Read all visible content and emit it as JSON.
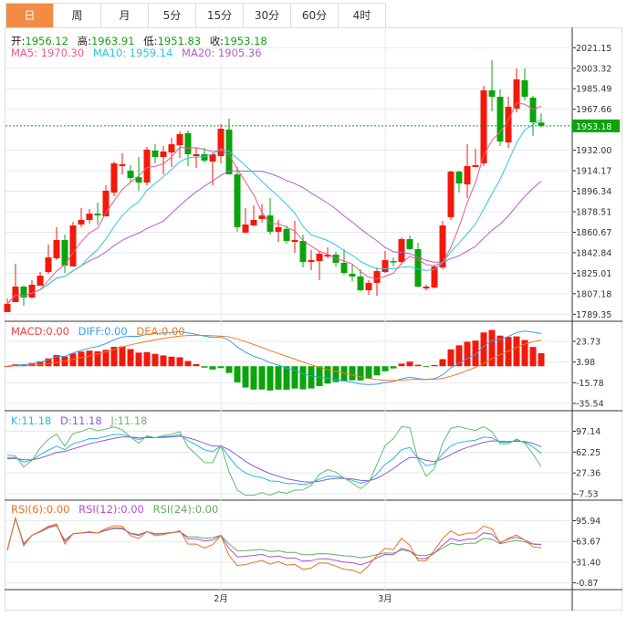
{
  "tabs": [
    {
      "label": "日",
      "active": true
    },
    {
      "label": "周",
      "active": false
    },
    {
      "label": "月",
      "active": false
    },
    {
      "label": "5分",
      "active": false
    },
    {
      "label": "15分",
      "active": false
    },
    {
      "label": "30分",
      "active": false
    },
    {
      "label": "60分",
      "active": false
    },
    {
      "label": "4时",
      "active": false
    }
  ],
  "quote": {
    "open_label": "开:",
    "open": "1956.12",
    "high_label": "高:",
    "high": "1963.91",
    "low_label": "低:",
    "low": "1951.83",
    "close_label": "收:",
    "close": "1953.18"
  },
  "ma_legend": {
    "ma5": "MA5: 1970.30",
    "ma10": "MA10: 1959.14",
    "ma20": "MA20: 1905.36"
  },
  "macd_legend": {
    "macd": "MACD:0.00",
    "diff": "DIFF:0.00",
    "dea": "DEA:0.00"
  },
  "kdj_legend": {
    "k": "K:11.18",
    "d": "D:11.18",
    "j": "J:11.18"
  },
  "rsi_legend": {
    "rsi6": "RSI(6):0.00",
    "rsi12": "RSI(12):0.00",
    "rsi24": "RSI(24):0.00"
  },
  "colors": {
    "up": "#f2190b",
    "down": "#0ba40b",
    "active_tab": "#f28b43",
    "ma5": "#ee5a8a",
    "ma10": "#31c4dc",
    "ma20": "#b65ccc",
    "diff": "#3d9cf0",
    "dea": "#f07a20",
    "k": "#28b9d8",
    "d": "#8c5ad8",
    "j": "#6ab86a",
    "rsi6": "#f07020",
    "rsi12": "#b050d0",
    "rsi24": "#60b060"
  },
  "chart_data": {
    "type": "candlestick",
    "last_price": "1953.18",
    "x_labels": [
      {
        "label": "2月",
        "index": 26
      },
      {
        "label": "3月",
        "index": 46
      }
    ],
    "price_axis": {
      "ticks": [
        "2021.15",
        "2003.32",
        "1985.49",
        "1967.66",
        "1932.00",
        "1914.17",
        "1896.34",
        "1878.51",
        "1860.67",
        "1842.84",
        "1825.01",
        "1807.18",
        "1789.35"
      ],
      "range": [
        1789.35,
        2021.15
      ]
    },
    "macd_axis": {
      "ticks": [
        "23.73",
        "3.98",
        "-15.78",
        "-35.54"
      ]
    },
    "kdj_axis": {
      "ticks": [
        "97.14",
        "62.25",
        "27.36",
        "-7.53"
      ]
    },
    "rsi_axis": {
      "ticks": [
        "95.94",
        "63.67",
        "31.40",
        "-0.87"
      ]
    },
    "ohlc": [
      [
        1791.2,
        1803.1,
        1791.2,
        1798.3
      ],
      [
        1799.9,
        1833.3,
        1799.9,
        1813.4
      ],
      [
        1813.4,
        1814.2,
        1796.7,
        1803.9
      ],
      [
        1803.9,
        1819.0,
        1803.1,
        1815.0
      ],
      [
        1814.2,
        1826.1,
        1814.2,
        1822.9
      ],
      [
        1826.1,
        1849.9,
        1824.5,
        1838.8
      ],
      [
        1838.0,
        1865.1,
        1836.4,
        1853.9
      ],
      [
        1853.9,
        1858.7,
        1825.3,
        1831.7
      ],
      [
        1830.9,
        1869.8,
        1830.9,
        1866.6
      ],
      [
        1867.4,
        1881.7,
        1865.1,
        1871.4
      ],
      [
        1871.4,
        1880.9,
        1868.2,
        1876.9
      ],
      [
        1876.9,
        1886.4,
        1867.4,
        1875.3
      ],
      [
        1874.5,
        1901.5,
        1874.5,
        1896.8
      ],
      [
        1895.2,
        1922.2,
        1892.0,
        1920.6
      ],
      [
        1918.2,
        1929.3,
        1911.0,
        1919.8
      ],
      [
        1914.2,
        1919.0,
        1903.9,
        1907.9
      ],
      [
        1908.7,
        1926.1,
        1896.8,
        1903.9
      ],
      [
        1903.9,
        1934.9,
        1901.5,
        1932.5
      ],
      [
        1931.7,
        1937.2,
        1920.6,
        1926.1
      ],
      [
        1926.1,
        1935.7,
        1911.0,
        1930.9
      ],
      [
        1930.1,
        1942.8,
        1917.4,
        1937.2
      ],
      [
        1936.4,
        1948.4,
        1925.3,
        1946.0
      ],
      [
        1946.8,
        1949.2,
        1918.2,
        1928.5
      ],
      [
        1926.9,
        1934.1,
        1916.6,
        1928.5
      ],
      [
        1928.5,
        1934.1,
        1921.4,
        1923.0
      ],
      [
        1922.2,
        1930.1,
        1901.5,
        1928.5
      ],
      [
        1926.9,
        1954.7,
        1920.6,
        1950.7
      ],
      [
        1949.9,
        1959.5,
        1911.0,
        1911.0
      ],
      [
        1911.0,
        1917.4,
        1861.1,
        1865.1
      ],
      [
        1860.3,
        1881.7,
        1860.3,
        1867.4
      ],
      [
        1866.6,
        1884.1,
        1865.8,
        1871.4
      ],
      [
        1872.2,
        1884.9,
        1869.0,
        1875.3
      ],
      [
        1875.3,
        1890.4,
        1858.7,
        1861.1
      ],
      [
        1861.1,
        1871.4,
        1852.3,
        1865.1
      ],
      [
        1863.5,
        1866.6,
        1850.7,
        1853.1
      ],
      [
        1852.3,
        1870.6,
        1842.8,
        1853.9
      ],
      [
        1853.1,
        1858.7,
        1830.1,
        1834.8
      ],
      [
        1834.8,
        1845.2,
        1827.7,
        1836.4
      ],
      [
        1835.6,
        1844.4,
        1819.0,
        1842.0
      ],
      [
        1839.6,
        1847.5,
        1838.0,
        1841.2
      ],
      [
        1841.2,
        1843.6,
        1830.9,
        1834.1
      ],
      [
        1834.1,
        1846.0,
        1823.7,
        1825.3
      ],
      [
        1824.5,
        1832.5,
        1818.2,
        1822.2
      ],
      [
        1822.2,
        1828.5,
        1809.5,
        1810.2
      ],
      [
        1810.2,
        1819.0,
        1806.3,
        1816.6
      ],
      [
        1816.6,
        1830.1,
        1805.5,
        1826.9
      ],
      [
        1826.1,
        1844.4,
        1825.3,
        1836.4
      ],
      [
        1835.6,
        1838.8,
        1830.9,
        1834.8
      ],
      [
        1834.8,
        1856.3,
        1832.5,
        1854.7
      ],
      [
        1854.7,
        1857.9,
        1845.2,
        1846.0
      ],
      [
        1846.0,
        1851.5,
        1812.6,
        1813.4
      ],
      [
        1811.8,
        1815.0,
        1810.2,
        1813.4
      ],
      [
        1812.6,
        1832.5,
        1811.8,
        1830.9
      ],
      [
        1830.1,
        1870.6,
        1828.5,
        1866.6
      ],
      [
        1873.8,
        1914.2,
        1871.4,
        1913.4
      ],
      [
        1913.4,
        1914.2,
        1895.2,
        1903.1
      ],
      [
        1902.3,
        1937.2,
        1890.4,
        1918.2
      ],
      [
        1917.4,
        1933.3,
        1917.4,
        1919.0
      ],
      [
        1920.6,
        1988.1,
        1918.2,
        1984.1
      ],
      [
        1984.1,
        2010.3,
        1965.8,
        1978.5
      ],
      [
        1978.5,
        1984.9,
        1935.7,
        1939.6
      ],
      [
        1938.8,
        1978.5,
        1934.1,
        1969.8
      ],
      [
        1968.2,
        2003.1,
        1965.0,
        1993.6
      ],
      [
        1992.8,
        2003.1,
        1975.3,
        1978.5
      ],
      [
        1977.7,
        1979.3,
        1944.4,
        1956.3
      ],
      [
        1956.12,
        1963.91,
        1951.83,
        1953.18
      ]
    ]
  }
}
